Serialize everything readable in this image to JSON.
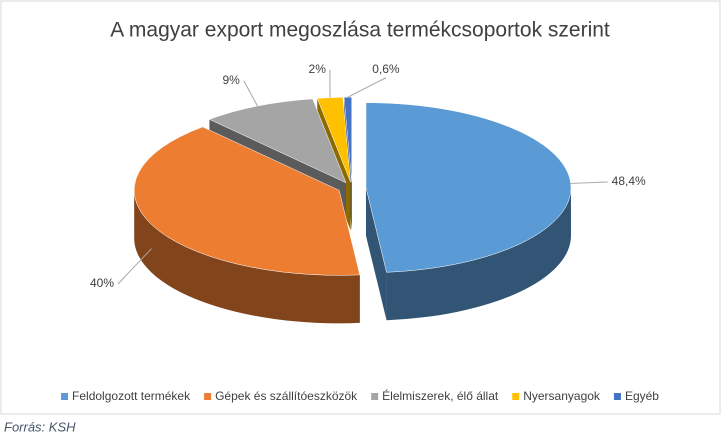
{
  "chart_data": {
    "type": "pie3d",
    "title": "A magyar export megoszlása termékcsoportok szerint",
    "categories": [
      "Feldolgozott termékek",
      "Gépek és szállítóeszközök",
      "Élelmiszerek, élő állat",
      "Nyersanyagok",
      "Egyéb"
    ],
    "values": [
      48.4,
      40,
      9,
      2,
      0.6
    ],
    "value_labels": [
      "48,4%",
      "40%",
      "9%",
      "2%",
      "0,6%"
    ],
    "colors": [
      "#5b9bd5",
      "#ed7d31",
      "#a5a5a5",
      "#ffc000",
      "#4472c4"
    ],
    "legend": "bottom",
    "source": "Forrás: KSH"
  }
}
